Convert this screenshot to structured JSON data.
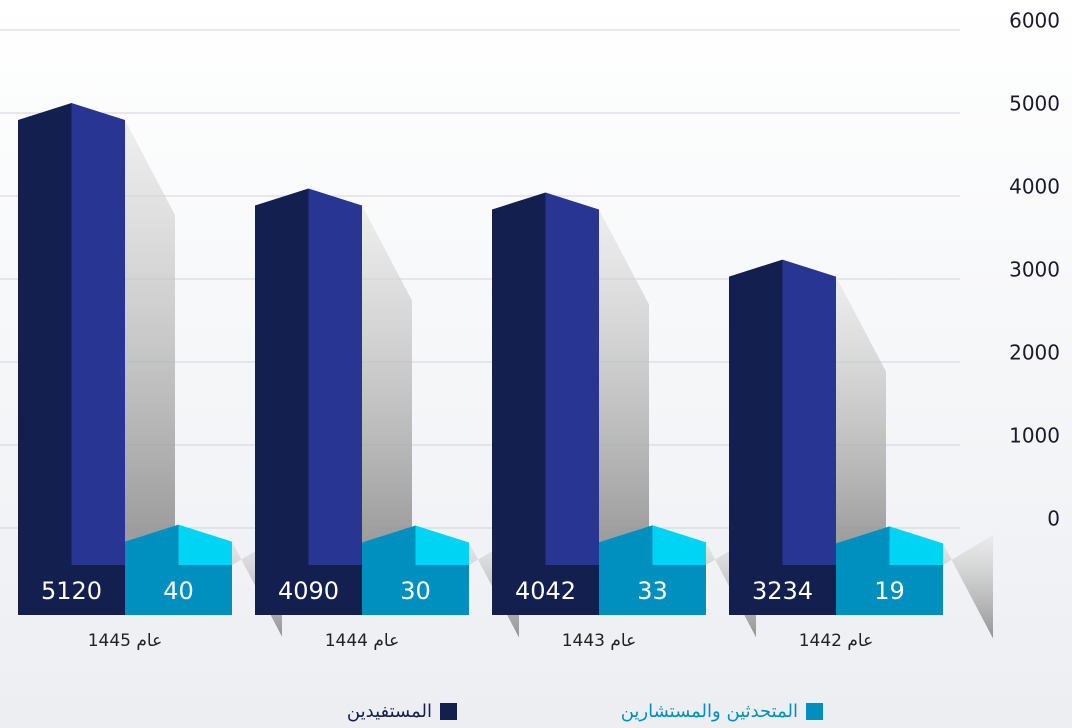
{
  "chart_data": {
    "type": "bar",
    "categories": [
      "عام 1445",
      "عام 1444",
      "عام 1443",
      "عام 1442"
    ],
    "series": [
      {
        "name": "المستفيدين",
        "color": "#131f4f",
        "values": [
          5120,
          4090,
          4042,
          3234
        ]
      },
      {
        "name": "المتحدثين والمستشارين",
        "color": "#0090c0",
        "values": [
          40,
          30,
          33,
          19
        ]
      }
    ],
    "ylim": [
      0,
      6000
    ],
    "yticks": [
      0,
      1000,
      2000,
      3000,
      4000,
      5000,
      6000
    ],
    "grid": true
  }
}
